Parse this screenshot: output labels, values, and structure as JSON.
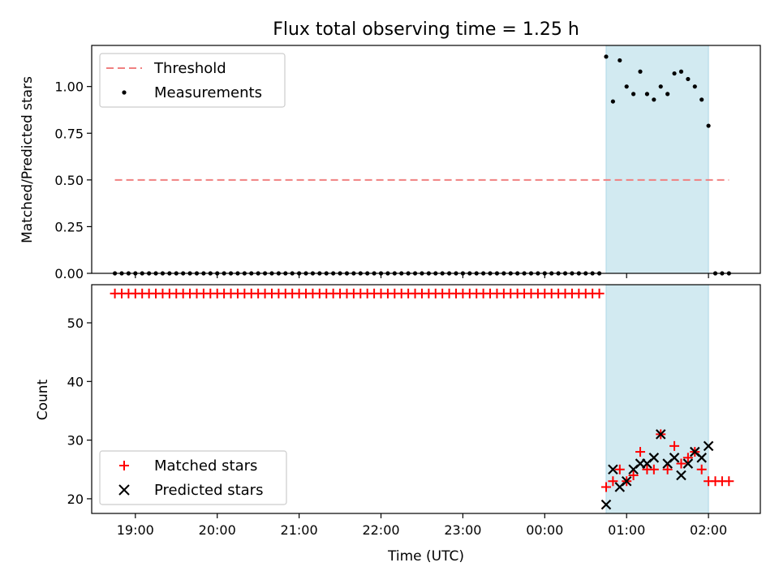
{
  "title": "Flux total observing time = 1.25 h",
  "xlabel": "Time (UTC)",
  "x_ticks": [
    "19:00",
    "20:00",
    "21:00",
    "22:00",
    "23:00",
    "00:00",
    "01:00",
    "02:00"
  ],
  "colors": {
    "threshold": "#f08080",
    "measurement": "#000000",
    "matched": "#ff0000",
    "predicted": "#000000",
    "span_fill": "#add8e6"
  },
  "chart_data": [
    {
      "type": "scatter",
      "ylabel": "Matched/Predicted stars",
      "ylim": [
        0,
        1.22
      ],
      "y_ticks": [
        "0.00",
        "0.25",
        "0.50",
        "0.75",
        "1.00"
      ],
      "xlim": [
        "18:28",
        "02:38"
      ],
      "highlight_span": [
        "00:45",
        "02:00"
      ],
      "legend": {
        "placement": "top-left",
        "entries": [
          "Threshold",
          "Measurements"
        ]
      },
      "series": [
        {
          "name": "Threshold",
          "style": "dashed-line",
          "x": [
            "18:45",
            "02:15"
          ],
          "y": [
            0.5,
            0.5
          ]
        },
        {
          "name": "Measurements",
          "style": "dot",
          "x": [
            "18:45",
            "18:50",
            "18:55",
            "19:00",
            "19:05",
            "19:10",
            "19:15",
            "19:20",
            "19:25",
            "19:30",
            "19:35",
            "19:40",
            "19:45",
            "19:50",
            "19:55",
            "20:00",
            "20:05",
            "20:10",
            "20:15",
            "20:20",
            "20:25",
            "20:30",
            "20:35",
            "20:40",
            "20:45",
            "20:50",
            "20:55",
            "21:00",
            "21:05",
            "21:10",
            "21:15",
            "21:20",
            "21:25",
            "21:30",
            "21:35",
            "21:40",
            "21:45",
            "21:50",
            "21:55",
            "22:00",
            "22:05",
            "22:10",
            "22:15",
            "22:20",
            "22:25",
            "22:30",
            "22:35",
            "22:40",
            "22:45",
            "22:50",
            "22:55",
            "23:00",
            "23:05",
            "23:10",
            "23:15",
            "23:20",
            "23:25",
            "23:30",
            "23:35",
            "23:40",
            "23:45",
            "23:50",
            "23:55",
            "00:00",
            "00:05",
            "00:10",
            "00:15",
            "00:20",
            "00:25",
            "00:30",
            "00:35",
            "00:40",
            "00:45",
            "00:50",
            "00:55",
            "01:00",
            "01:05",
            "01:10",
            "01:15",
            "01:20",
            "01:25",
            "01:30",
            "01:35",
            "01:40",
            "01:45",
            "01:50",
            "01:55",
            "02:00",
            "02:05",
            "02:10",
            "02:15"
          ],
          "y": [
            0,
            0,
            0,
            0,
            0,
            0,
            0,
            0,
            0,
            0,
            0,
            0,
            0,
            0,
            0,
            0,
            0,
            0,
            0,
            0,
            0,
            0,
            0,
            0,
            0,
            0,
            0,
            0,
            0,
            0,
            0,
            0,
            0,
            0,
            0,
            0,
            0,
            0,
            0,
            0,
            0,
            0,
            0,
            0,
            0,
            0,
            0,
            0,
            0,
            0,
            0,
            0,
            0,
            0,
            0,
            0,
            0,
            0,
            0,
            0,
            0,
            0,
            0,
            0,
            0,
            0,
            0,
            0,
            0,
            0,
            0,
            0,
            1.16,
            0.92,
            1.14,
            1.0,
            0.96,
            1.08,
            0.96,
            0.93,
            1.0,
            0.96,
            1.07,
            1.08,
            1.04,
            1.0,
            0.93,
            0.79,
            0,
            0,
            0
          ]
        }
      ]
    },
    {
      "type": "scatter",
      "ylabel": "Count",
      "ylim": [
        17.5,
        56.5
      ],
      "y_ticks": [
        "20",
        "30",
        "40",
        "50"
      ],
      "xlim": [
        "18:28",
        "02:38"
      ],
      "highlight_span": [
        "00:45",
        "02:00"
      ],
      "legend": {
        "placement": "bottom-left",
        "entries": [
          "Matched stars",
          "Predicted stars"
        ]
      },
      "series": [
        {
          "name": "Matched stars",
          "style": "plus",
          "x": [
            "18:45",
            "18:50",
            "18:55",
            "19:00",
            "19:05",
            "19:10",
            "19:15",
            "19:20",
            "19:25",
            "19:30",
            "19:35",
            "19:40",
            "19:45",
            "19:50",
            "19:55",
            "20:00",
            "20:05",
            "20:10",
            "20:15",
            "20:20",
            "20:25",
            "20:30",
            "20:35",
            "20:40",
            "20:45",
            "20:50",
            "20:55",
            "21:00",
            "21:05",
            "21:10",
            "21:15",
            "21:20",
            "21:25",
            "21:30",
            "21:35",
            "21:40",
            "21:45",
            "21:50",
            "21:55",
            "22:00",
            "22:05",
            "22:10",
            "22:15",
            "22:20",
            "22:25",
            "22:30",
            "22:35",
            "22:40",
            "22:45",
            "22:50",
            "22:55",
            "23:00",
            "23:05",
            "23:10",
            "23:15",
            "23:20",
            "23:25",
            "23:30",
            "23:35",
            "23:40",
            "23:45",
            "23:50",
            "23:55",
            "00:00",
            "00:05",
            "00:10",
            "00:15",
            "00:20",
            "00:25",
            "00:30",
            "00:35",
            "00:40",
            "00:45",
            "00:50",
            "00:55",
            "01:00",
            "01:05",
            "01:10",
            "01:15",
            "01:20",
            "01:25",
            "01:30",
            "01:35",
            "01:40",
            "01:45",
            "01:50",
            "01:55",
            "02:00",
            "02:05",
            "02:10",
            "02:15"
          ],
          "y": [
            55,
            55,
            55,
            55,
            55,
            55,
            55,
            55,
            55,
            55,
            55,
            55,
            55,
            55,
            55,
            55,
            55,
            55,
            55,
            55,
            55,
            55,
            55,
            55,
            55,
            55,
            55,
            55,
            55,
            55,
            55,
            55,
            55,
            55,
            55,
            55,
            55,
            55,
            55,
            55,
            55,
            55,
            55,
            55,
            55,
            55,
            55,
            55,
            55,
            55,
            55,
            55,
            55,
            55,
            55,
            55,
            55,
            55,
            55,
            55,
            55,
            55,
            55,
            55,
            55,
            55,
            55,
            55,
            55,
            55,
            55,
            55,
            22,
            23,
            25,
            23,
            24,
            28,
            25,
            25,
            31,
            25,
            29,
            26,
            27,
            28,
            25,
            23,
            23,
            23,
            23
          ]
        },
        {
          "name": "Predicted stars",
          "style": "x",
          "x": [
            "00:45",
            "00:50",
            "00:55",
            "01:00",
            "01:05",
            "01:10",
            "01:15",
            "01:20",
            "01:25",
            "01:30",
            "01:35",
            "01:40",
            "01:45",
            "01:50",
            "01:55",
            "02:00"
          ],
          "y": [
            19,
            25,
            22,
            23,
            25,
            26,
            26,
            27,
            31,
            26,
            27,
            24,
            26,
            28,
            27,
            29
          ]
        }
      ]
    }
  ]
}
